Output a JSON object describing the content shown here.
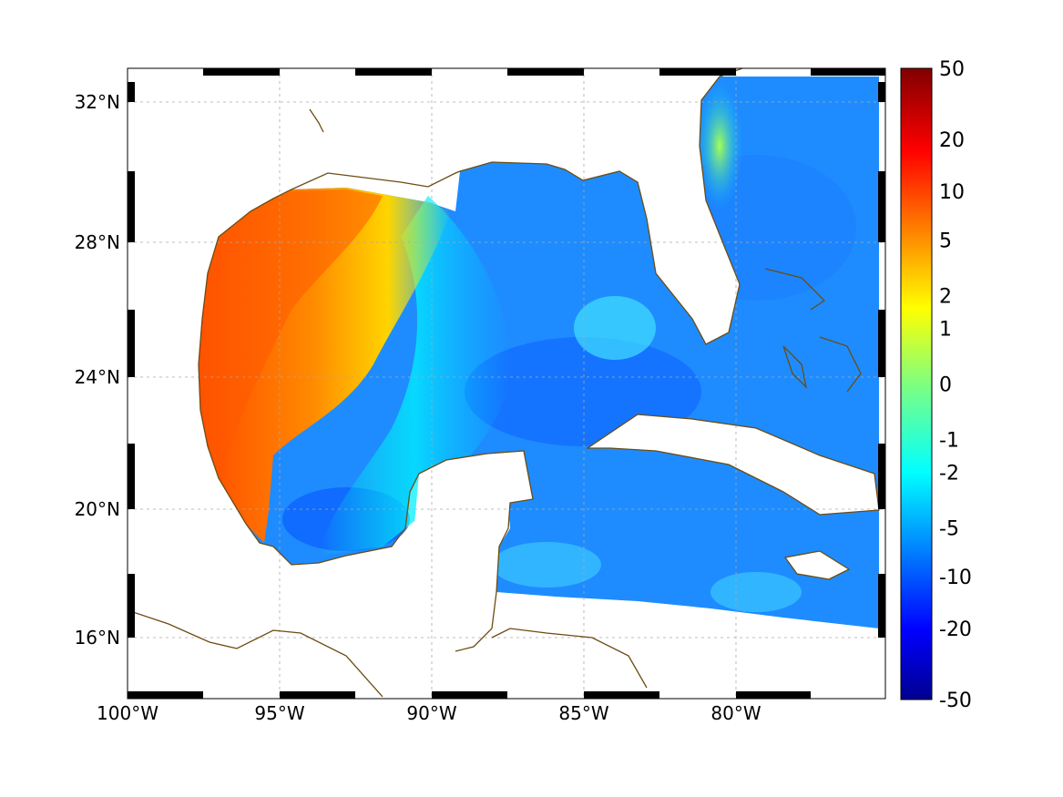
{
  "map": {
    "projection": "mercator",
    "lon_range": [
      -100,
      -75
    ],
    "lat_range": [
      14.2,
      33.0
    ],
    "grid": true,
    "coastline_color": "#6b4c12",
    "x_ticks": [
      {
        "value": -100,
        "label": "100°W"
      },
      {
        "value": -95,
        "label": "95°W"
      },
      {
        "value": -90,
        "label": "90°W"
      },
      {
        "value": -85,
        "label": "85°W"
      },
      {
        "value": -80,
        "label": "80°W"
      }
    ],
    "y_ticks": [
      {
        "value": 16,
        "label": "16°N"
      },
      {
        "value": 20,
        "label": "20°N"
      },
      {
        "value": 24,
        "label": "24°N"
      },
      {
        "value": 28,
        "label": "28°N"
      },
      {
        "value": 32,
        "label": "32°N"
      }
    ]
  },
  "colorbar": {
    "colormap": "jet",
    "scale": "symmetric-log",
    "range": [
      -50,
      50
    ],
    "tick_labels": [
      "50",
      "20",
      "10",
      "5",
      "2",
      "1",
      "0",
      "-1",
      "-2",
      "-5",
      "-10",
      "-20",
      "-50"
    ]
  }
}
